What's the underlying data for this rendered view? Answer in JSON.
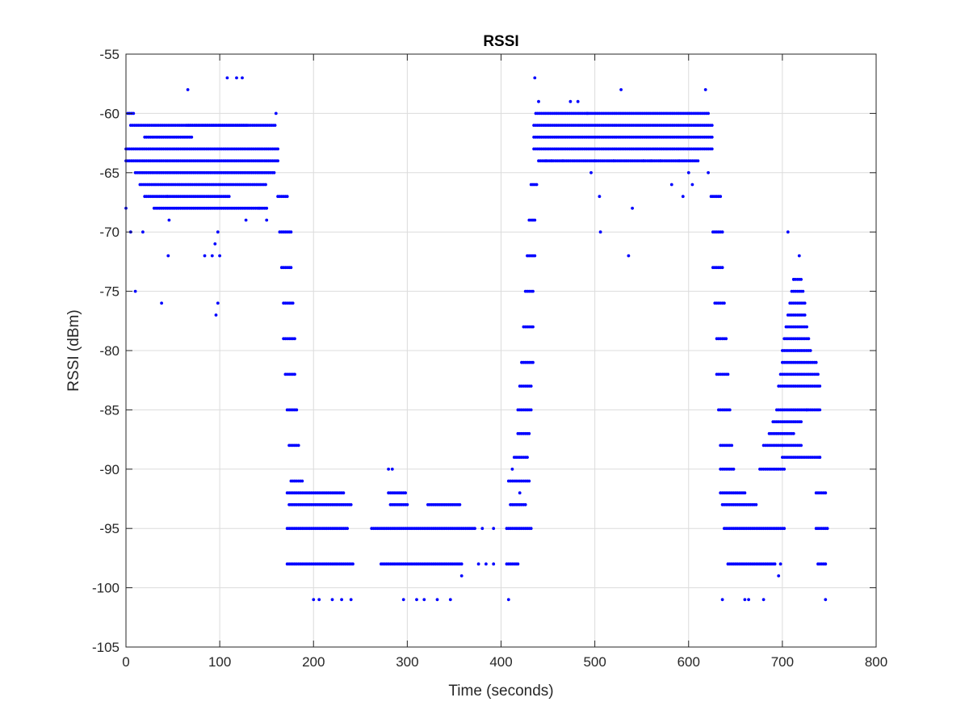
{
  "chart_data": {
    "type": "scatter",
    "title": "RSSI",
    "xlabel": "Time (seconds)",
    "ylabel": "RSSI (dBm)",
    "xlim": [
      0,
      800
    ],
    "ylim": [
      -105,
      -55
    ],
    "xticks": [
      0,
      100,
      200,
      300,
      400,
      500,
      600,
      700,
      800
    ],
    "yticks": [
      -105,
      -100,
      -95,
      -90,
      -85,
      -80,
      -75,
      -70,
      -65,
      -60,
      -55
    ],
    "xtick_labels": [
      "0",
      "100",
      "200",
      "300",
      "400",
      "500",
      "600",
      "700",
      "800"
    ],
    "ytick_labels": [
      "-105",
      "-100",
      "-95",
      "-90",
      "-85",
      "-80",
      "-75",
      "-70",
      "-65",
      "-60",
      "-55"
    ],
    "grid": true,
    "marker_color": "#0000ff",
    "series": [
      {
        "name": "",
        "x_start": 0,
        "x_step": 2,
        "dense": [
          [
            0,
            162,
            -63
          ],
          [
            0,
            162,
            -64
          ],
          [
            5,
            160,
            -61
          ],
          [
            10,
            158,
            -65
          ],
          [
            15,
            150,
            -66
          ],
          [
            20,
            70,
            -62
          ],
          [
            65,
            130,
            -61
          ],
          [
            20,
            110,
            -67
          ],
          [
            30,
            150,
            -68
          ],
          [
            2,
            8,
            -60
          ],
          [
            435,
            625,
            -61
          ],
          [
            435,
            625,
            -62
          ],
          [
            435,
            625,
            -63
          ],
          [
            437,
            622,
            -60
          ],
          [
            440,
            610,
            -64
          ],
          [
            162,
            172,
            -67
          ],
          [
            164,
            176,
            -70
          ],
          [
            166,
            176,
            -73
          ],
          [
            168,
            178,
            -76
          ],
          [
            168,
            180,
            -79
          ],
          [
            170,
            180,
            -82
          ],
          [
            172,
            182,
            -85
          ],
          [
            174,
            184,
            -88
          ],
          [
            176,
            188,
            -91
          ],
          [
            172,
            232,
            -92
          ],
          [
            174,
            240,
            -93
          ],
          [
            172,
            236,
            -95
          ],
          [
            172,
            242,
            -98
          ],
          [
            262,
            372,
            -95
          ],
          [
            272,
            358,
            -98
          ],
          [
            280,
            298,
            -92
          ],
          [
            282,
            300,
            -93
          ],
          [
            322,
            356,
            -93
          ],
          [
            406,
            432,
            -95
          ],
          [
            410,
            426,
            -93
          ],
          [
            408,
            430,
            -91
          ],
          [
            414,
            428,
            -89
          ],
          [
            418,
            430,
            -87
          ],
          [
            418,
            432,
            -85
          ],
          [
            420,
            432,
            -83
          ],
          [
            422,
            434,
            -81
          ],
          [
            424,
            434,
            -78
          ],
          [
            426,
            434,
            -75
          ],
          [
            428,
            436,
            -72
          ],
          [
            430,
            436,
            -69
          ],
          [
            432,
            438,
            -66
          ],
          [
            406,
            418,
            -98
          ],
          [
            624,
            634,
            -67
          ],
          [
            626,
            636,
            -70
          ],
          [
            626,
            636,
            -73
          ],
          [
            628,
            638,
            -76
          ],
          [
            630,
            640,
            -79
          ],
          [
            630,
            642,
            -82
          ],
          [
            632,
            644,
            -85
          ],
          [
            634,
            646,
            -88
          ],
          [
            634,
            648,
            -90
          ],
          [
            634,
            660,
            -92
          ],
          [
            636,
            672,
            -93
          ],
          [
            638,
            702,
            -95
          ],
          [
            642,
            692,
            -98
          ],
          [
            676,
            702,
            -90
          ],
          [
            680,
            700,
            -88
          ],
          [
            686,
            712,
            -87
          ],
          [
            690,
            720,
            -86
          ],
          [
            694,
            740,
            -85
          ],
          [
            696,
            740,
            -83
          ],
          [
            698,
            738,
            -82
          ],
          [
            700,
            736,
            -81
          ],
          [
            700,
            730,
            -80
          ],
          [
            702,
            728,
            -79
          ],
          [
            704,
            726,
            -78
          ],
          [
            706,
            724,
            -77
          ],
          [
            708,
            724,
            -76
          ],
          [
            710,
            722,
            -75
          ],
          [
            712,
            720,
            -74
          ],
          [
            700,
            720,
            -88
          ],
          [
            700,
            740,
            -89
          ],
          [
            736,
            746,
            -92
          ],
          [
            736,
            748,
            -95
          ],
          [
            738,
            746,
            -98
          ]
        ],
        "sparse": [
          [
            0,
            -68
          ],
          [
            5,
            -70
          ],
          [
            10,
            -75
          ],
          [
            18,
            -70
          ],
          [
            38,
            -76
          ],
          [
            45,
            -72
          ],
          [
            46,
            -69
          ],
          [
            44,
            -67
          ],
          [
            66,
            -58
          ],
          [
            84,
            -72
          ],
          [
            92,
            -72
          ],
          [
            95,
            -71
          ],
          [
            96,
            -77
          ],
          [
            98,
            -76
          ],
          [
            100,
            -72
          ],
          [
            98,
            -70
          ],
          [
            108,
            -57
          ],
          [
            118,
            -57
          ],
          [
            124,
            -57
          ],
          [
            128,
            -69
          ],
          [
            142,
            -68
          ],
          [
            150,
            -69
          ],
          [
            160,
            -60
          ],
          [
            200,
            -101
          ],
          [
            206,
            -101
          ],
          [
            220,
            -101
          ],
          [
            230,
            -101
          ],
          [
            240,
            -101
          ],
          [
            280,
            -90
          ],
          [
            284,
            -90
          ],
          [
            296,
            -101
          ],
          [
            310,
            -101
          ],
          [
            318,
            -101
          ],
          [
            332,
            -101
          ],
          [
            346,
            -101
          ],
          [
            358,
            -99
          ],
          [
            376,
            -98
          ],
          [
            384,
            -98
          ],
          [
            392,
            -98
          ],
          [
            380,
            -95
          ],
          [
            392,
            -95
          ],
          [
            408,
            -101
          ],
          [
            412,
            -90
          ],
          [
            420,
            -92
          ],
          [
            436,
            -57
          ],
          [
            440,
            -59
          ],
          [
            448,
            -64
          ],
          [
            454,
            -64
          ],
          [
            466,
            -64
          ],
          [
            474,
            -59
          ],
          [
            482,
            -59
          ],
          [
            492,
            -60
          ],
          [
            496,
            -65
          ],
          [
            500,
            -64
          ],
          [
            505,
            -67
          ],
          [
            506,
            -70
          ],
          [
            520,
            -64
          ],
          [
            528,
            -58
          ],
          [
            536,
            -72
          ],
          [
            540,
            -68
          ],
          [
            552,
            -64
          ],
          [
            560,
            -64
          ],
          [
            570,
            -64
          ],
          [
            582,
            -66
          ],
          [
            590,
            -64
          ],
          [
            594,
            -67
          ],
          [
            600,
            -65
          ],
          [
            604,
            -66
          ],
          [
            618,
            -58
          ],
          [
            621,
            -65
          ],
          [
            636,
            -101
          ],
          [
            660,
            -101
          ],
          [
            664,
            -101
          ],
          [
            680,
            -101
          ],
          [
            696,
            -99
          ],
          [
            698,
            -98
          ],
          [
            706,
            -70
          ],
          [
            712,
            -74
          ],
          [
            718,
            -72
          ],
          [
            726,
            -85
          ],
          [
            746,
            -101
          ],
          [
            740,
            -89
          ]
        ]
      }
    ]
  }
}
